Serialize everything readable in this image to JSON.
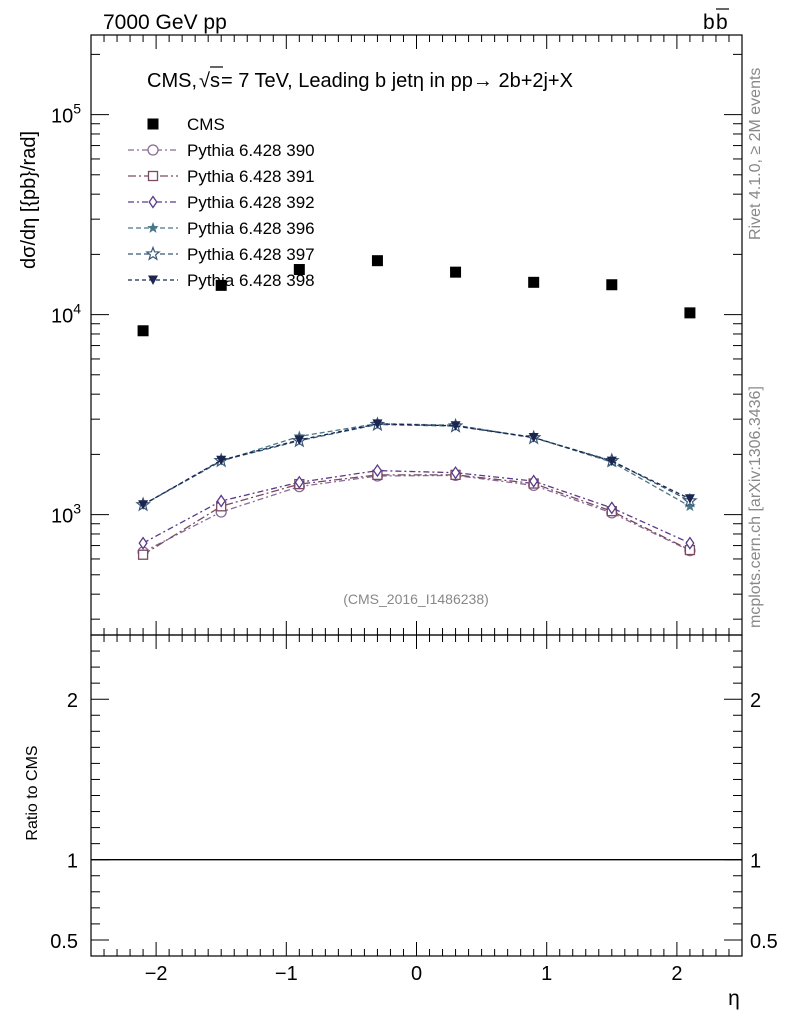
{
  "header": {
    "left_label": "7000 GeV pp",
    "right_label_base": "b",
    "right_label_bar": "b"
  },
  "side_labels": {
    "rivet": "Rivet 4.1.0, ≥ 2M events",
    "mcplots": "mcplots.cern.ch [arXiv:1306.3436]"
  },
  "watermark": "(CMS_2016_I1486238)",
  "chart_data": [
    {
      "type": "scatter",
      "title_prefix": "CMS, ",
      "title_sqrt": "√",
      "title_s": "s",
      "title_suffix": " = 7 TeV, Leading b jetη in pp→  2b+2j+X",
      "ylabel": "dσ/dη [{pb}/rad]",
      "yscale": "log",
      "ylim": [
        250,
        250000
      ],
      "xlim": [
        -2.5,
        2.5
      ],
      "ytick_labels": [
        {
          "base": "10",
          "exp": "3",
          "value": 1000
        },
        {
          "base": "10",
          "exp": "4",
          "value": 10000
        },
        {
          "base": "10",
          "exp": "5",
          "value": 100000
        }
      ],
      "x": [
        -2.1,
        -1.5,
        -0.9,
        -0.3,
        0.3,
        0.9,
        1.5,
        2.1
      ],
      "series": [
        {
          "name": "CMS",
          "marker": "square-filled",
          "color": "#000000",
          "dash": "none",
          "values": [
            8300,
            14000,
            16800,
            18600,
            16300,
            14500,
            14100,
            10200
          ]
        },
        {
          "name": "Pythia 6.428 390",
          "marker": "circle-open",
          "color": "#8a6a9a",
          "dash": "6,3,2,3",
          "values": [
            650,
            1030,
            1380,
            1560,
            1570,
            1400,
            1020,
            660
          ]
        },
        {
          "name": "Pythia 6.428 391",
          "marker": "square-open",
          "color": "#7a4a60",
          "dash": "8,3,2,3",
          "values": [
            630,
            1100,
            1420,
            1580,
            1580,
            1430,
            1040,
            665
          ]
        },
        {
          "name": "Pythia 6.428 392",
          "marker": "diamond-open",
          "color": "#5a3a8a",
          "dash": "6,3,2,3",
          "values": [
            720,
            1170,
            1450,
            1660,
            1620,
            1470,
            1080,
            720
          ]
        },
        {
          "name": "Pythia 6.428 396",
          "marker": "star-filled",
          "color": "#4a7888",
          "dash": "5,3",
          "values": [
            1120,
            1850,
            2460,
            2850,
            2800,
            2430,
            1830,
            1100
          ]
        },
        {
          "name": "Pythia 6.428 397",
          "marker": "star-open",
          "color": "#3a5878",
          "dash": "5,3",
          "values": [
            1120,
            1860,
            2340,
            2820,
            2770,
            2420,
            1860,
            1170
          ]
        },
        {
          "name": "Pythia 6.428 398",
          "marker": "triangle-down-filled",
          "color": "#1a2650",
          "dash": "4,3",
          "values": [
            1120,
            1870,
            2360,
            2840,
            2780,
            2430,
            1850,
            1200
          ]
        }
      ]
    },
    {
      "type": "line",
      "ylabel": "Ratio to CMS",
      "xlabel": "η",
      "ylim": [
        0.4,
        2.4
      ],
      "xlim": [
        -2.5,
        2.5
      ],
      "reference_value": 1,
      "ytick_labels": [
        "0.5",
        "1",
        "2"
      ],
      "ytick_values": [
        0.5,
        1,
        2
      ],
      "xtick_labels": [
        "−2",
        "−1",
        "0",
        "1",
        "2"
      ],
      "xtick_values": [
        -2,
        -1,
        0,
        1,
        2
      ]
    }
  ]
}
